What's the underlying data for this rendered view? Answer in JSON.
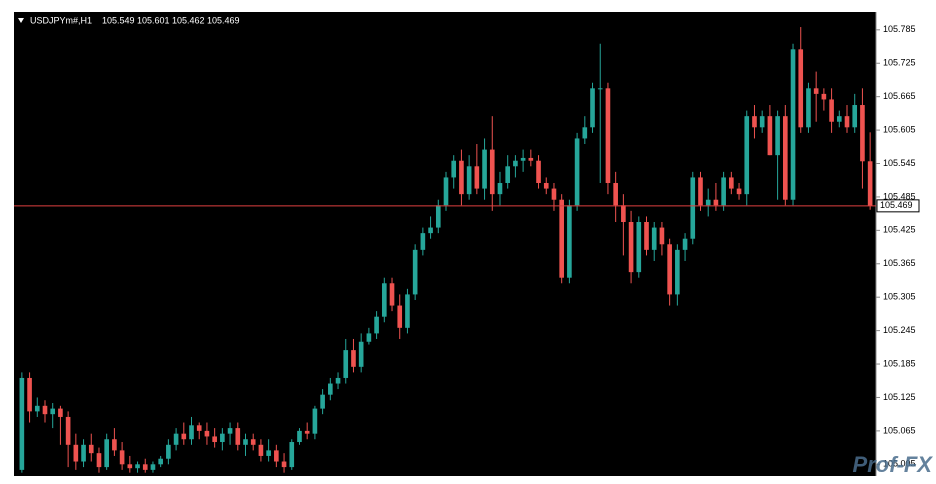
{
  "chart_data": {
    "type": "candlestick",
    "title": "USDJPYm#,H1",
    "watermark": "Prof-FX",
    "up_color": "#26a69a",
    "down_color": "#ef5350",
    "ylim": [
      104.984,
      105.817
    ],
    "yticks": [
      105.785,
      105.725,
      105.665,
      105.605,
      105.545,
      105.485,
      105.425,
      105.365,
      105.305,
      105.245,
      105.185,
      105.125,
      105.065,
      105.005
    ],
    "open": [
      104.995,
      105.16,
      105.1,
      105.11,
      105.095,
      105.105,
      105.09,
      105.04,
      105.01,
      105.04,
      105.025,
      105.0,
      105.05,
      105.03,
      105.005,
      104.998,
      105.005,
      104.995,
      105.005,
      105.015,
      105.04,
      105.06,
      105.05,
      105.075,
      105.065,
      105.055,
      105.045,
      105.06,
      105.07,
      105.04,
      105.05,
      105.04,
      105.02,
      105.03,
      105.01,
      105.0,
      105.045,
      105.065,
      105.06,
      105.105,
      105.13,
      105.15,
      105.16,
      105.21,
      105.18,
      105.225,
      105.24,
      105.27,
      105.33,
      105.29,
      105.25,
      105.31,
      105.39,
      105.42,
      105.43,
      105.47,
      105.52,
      105.55,
      105.49,
      105.54,
      105.5,
      105.57,
      105.49,
      105.51,
      105.54,
      105.55,
      105.555,
      105.55,
      105.51,
      105.5,
      105.48,
      105.34,
      105.47,
      105.59,
      105.61,
      105.68,
      105.68,
      105.51,
      105.47,
      105.44,
      105.35,
      105.44,
      105.39,
      105.43,
      105.4,
      105.31,
      105.39,
      105.41,
      105.52,
      105.47,
      105.48,
      105.47,
      105.52,
      105.5,
      105.49,
      105.63,
      105.61,
      105.63,
      105.56,
      105.63,
      105.48,
      105.75,
      105.61,
      105.68,
      105.67,
      105.66,
      105.62,
      105.63,
      105.61,
      105.65,
      105.549
    ],
    "high": [
      105.17,
      105.17,
      105.125,
      105.12,
      105.115,
      105.11,
      105.1,
      105.06,
      105.05,
      105.06,
      105.035,
      105.06,
      105.07,
      105.045,
      105.02,
      105.01,
      105.015,
      105.01,
      105.02,
      105.05,
      105.07,
      105.08,
      105.09,
      105.08,
      105.08,
      105.07,
      105.07,
      105.08,
      105.08,
      105.06,
      105.06,
      105.05,
      105.05,
      105.04,
      105.025,
      105.05,
      105.07,
      105.08,
      105.11,
      105.14,
      105.16,
      105.17,
      105.23,
      105.23,
      105.24,
      105.25,
      105.28,
      105.34,
      105.34,
      105.31,
      105.32,
      105.4,
      105.43,
      105.45,
      105.48,
      105.53,
      105.56,
      105.57,
      105.56,
      105.58,
      105.59,
      105.63,
      105.53,
      105.56,
      105.56,
      105.57,
      105.57,
      105.56,
      105.52,
      105.51,
      105.49,
      105.48,
      105.6,
      105.63,
      105.69,
      105.76,
      105.69,
      105.53,
      105.49,
      105.46,
      105.45,
      105.45,
      105.44,
      105.44,
      105.41,
      105.4,
      105.42,
      105.53,
      105.53,
      105.5,
      105.51,
      105.53,
      105.53,
      105.51,
      105.64,
      105.65,
      105.64,
      105.65,
      105.64,
      105.65,
      105.76,
      105.79,
      105.69,
      105.71,
      105.68,
      105.68,
      105.64,
      105.65,
      105.67,
      105.68,
      105.601
    ],
    "low": [
      104.99,
      105.08,
      105.09,
      105.08,
      105.07,
      105.04,
      105.0,
      104.995,
      105.0,
      105.01,
      104.99,
      104.995,
      105.02,
      104.995,
      104.99,
      104.99,
      104.99,
      104.99,
      105.0,
      105.005,
      105.03,
      105.04,
      105.04,
      105.05,
      105.04,
      105.035,
      105.03,
      105.04,
      105.03,
      105.02,
      105.03,
      105.01,
      105.01,
      105.0,
      104.99,
      104.995,
      105.04,
      105.05,
      105.05,
      105.095,
      105.12,
      105.14,
      105.15,
      105.17,
      105.17,
      105.22,
      105.23,
      105.26,
      105.28,
      105.23,
      105.24,
      105.3,
      105.38,
      105.41,
      105.42,
      105.46,
      105.5,
      105.47,
      105.48,
      105.49,
      105.48,
      105.46,
      105.47,
      105.5,
      105.52,
      105.53,
      105.54,
      105.5,
      105.49,
      105.46,
      105.33,
      105.33,
      105.46,
      105.58,
      105.6,
      105.51,
      105.49,
      105.44,
      105.38,
      105.33,
      105.34,
      105.38,
      105.37,
      105.38,
      105.29,
      105.29,
      105.37,
      105.4,
      105.46,
      105.45,
      105.46,
      105.46,
      105.49,
      105.48,
      105.47,
      105.59,
      105.6,
      105.56,
      105.48,
      105.47,
      105.47,
      105.6,
      105.6,
      105.62,
      105.64,
      105.6,
      105.61,
      105.6,
      105.6,
      105.5,
      105.462
    ],
    "close": [
      105.16,
      105.1,
      105.11,
      105.095,
      105.105,
      105.09,
      105.04,
      105.01,
      105.04,
      105.025,
      105.0,
      105.05,
      105.03,
      105.005,
      104.998,
      105.005,
      104.995,
      105.005,
      105.015,
      105.04,
      105.06,
      105.05,
      105.075,
      105.065,
      105.055,
      105.045,
      105.06,
      105.07,
      105.04,
      105.05,
      105.04,
      105.02,
      105.03,
      105.01,
      105.0,
      105.045,
      105.065,
      105.06,
      105.105,
      105.13,
      105.15,
      105.16,
      105.21,
      105.18,
      105.225,
      105.24,
      105.27,
      105.33,
      105.29,
      105.25,
      105.31,
      105.39,
      105.42,
      105.43,
      105.47,
      105.52,
      105.55,
      105.49,
      105.54,
      105.5,
      105.57,
      105.49,
      105.51,
      105.54,
      105.55,
      105.555,
      105.55,
      105.51,
      105.5,
      105.48,
      105.34,
      105.47,
      105.59,
      105.61,
      105.68,
      105.68,
      105.51,
      105.47,
      105.44,
      105.35,
      105.44,
      105.39,
      105.43,
      105.4,
      105.31,
      105.39,
      105.41,
      105.52,
      105.47,
      105.48,
      105.47,
      105.52,
      105.5,
      105.49,
      105.63,
      105.61,
      105.63,
      105.56,
      105.63,
      105.48,
      105.75,
      105.61,
      105.68,
      105.67,
      105.66,
      105.62,
      105.63,
      105.61,
      105.65,
      105.549,
      105.469
    ]
  }
}
